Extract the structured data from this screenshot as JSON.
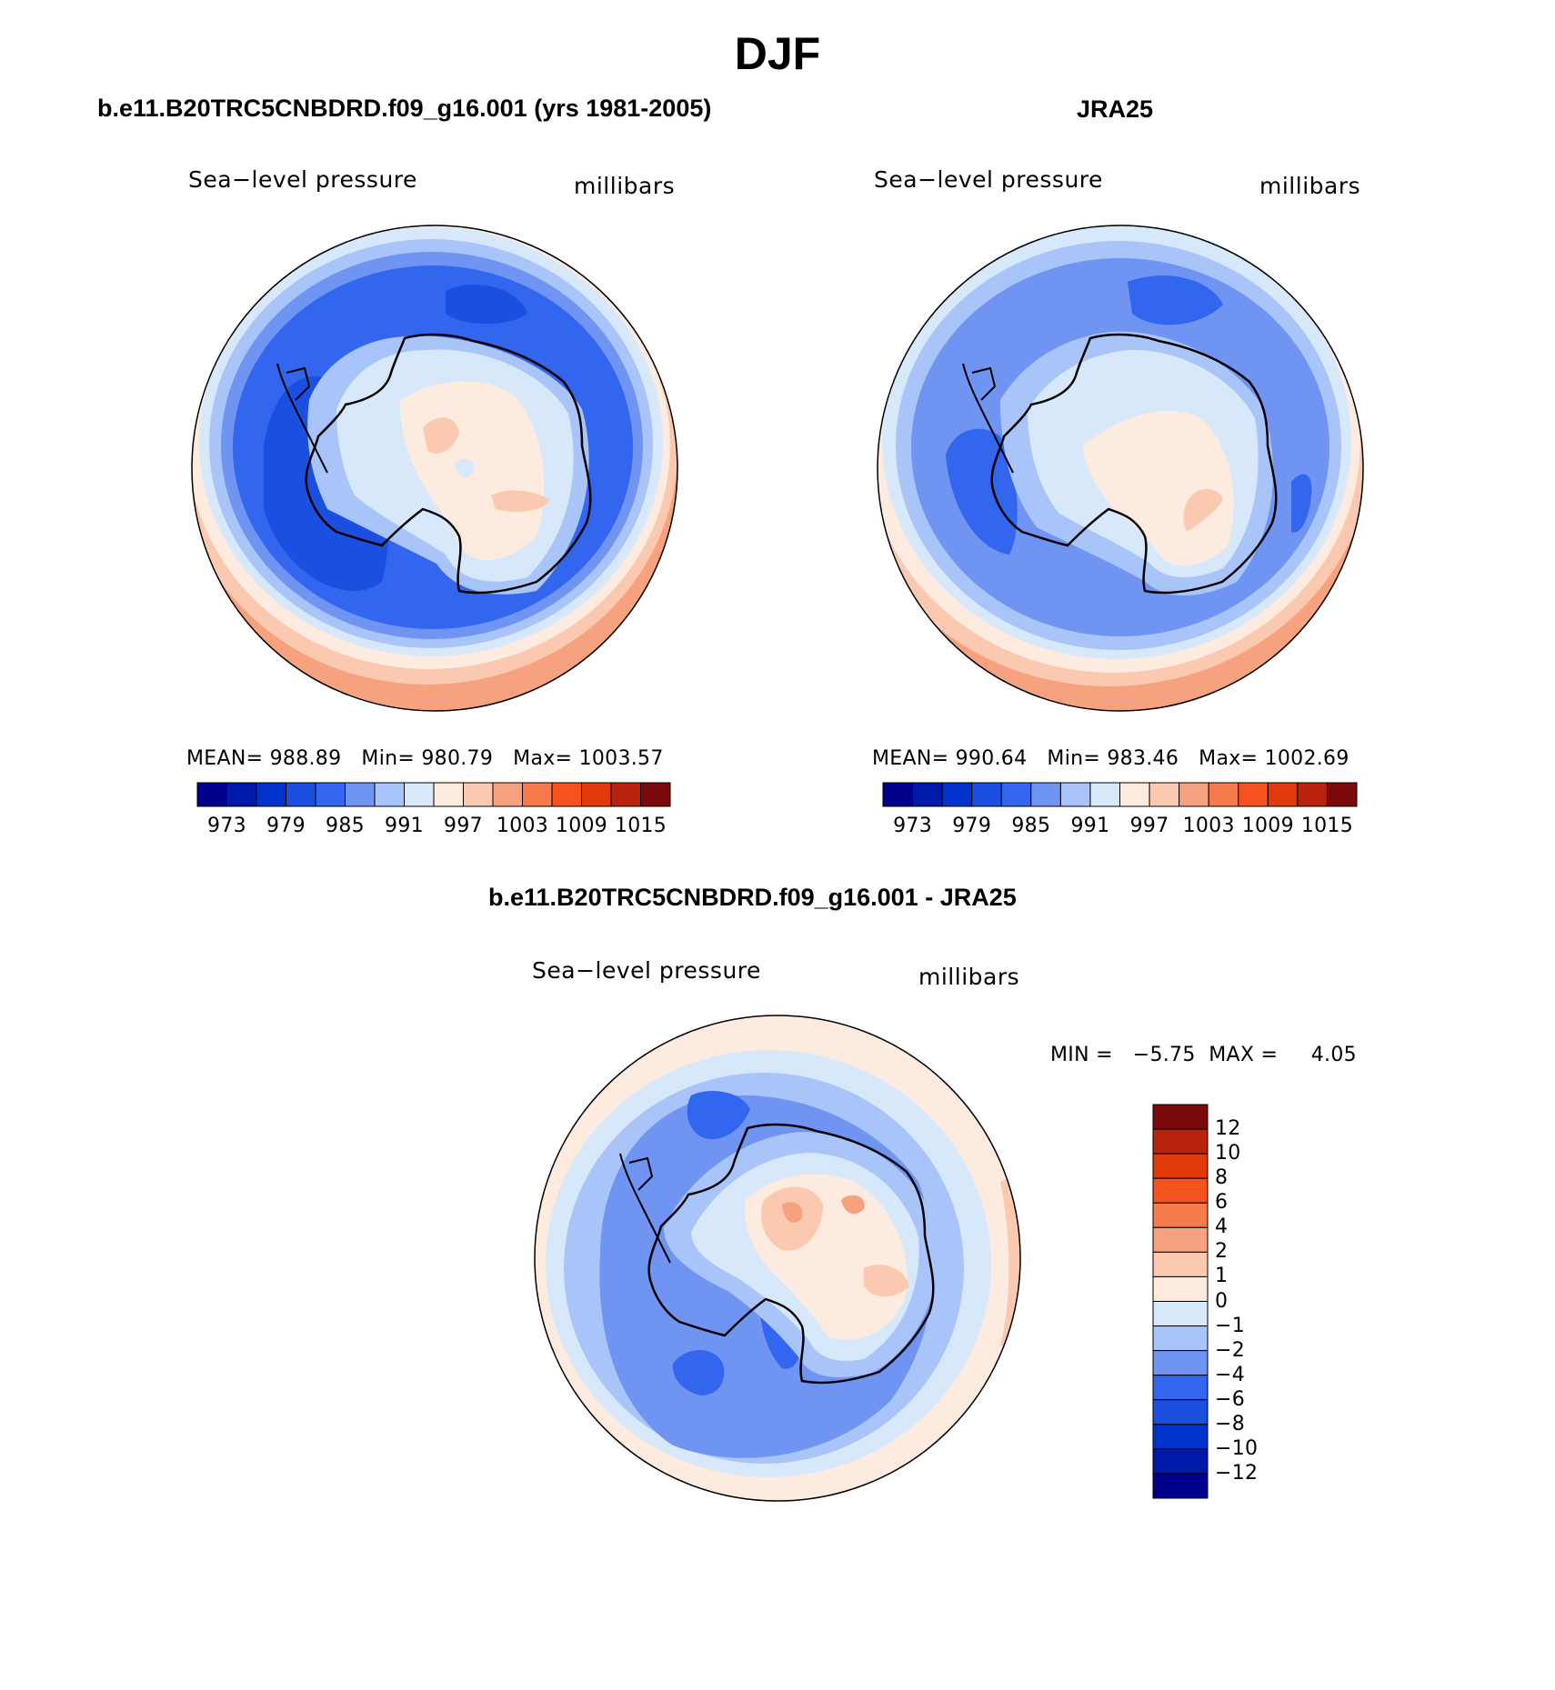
{
  "figure": {
    "season_title": "DJF"
  },
  "panels": [
    {
      "title": "b.e11.B20TRC5CNBDRD.f09_g16.001 (yrs 1981-2005)",
      "left_string": "Sea−level pressure",
      "right_string": "millibars",
      "stats": {
        "mean": "MEAN= 988.89",
        "min": "Min= 980.79",
        "max": "Max= 1003.57"
      }
    },
    {
      "title": "JRA25",
      "left_string": "Sea−level pressure",
      "right_string": "millibars",
      "stats": {
        "mean": "MEAN= 990.64",
        "min": "Min= 983.46",
        "max": "Max= 1002.69"
      }
    },
    {
      "title": "b.e11.B20TRC5CNBDRD.f09_g16.001 - JRA25",
      "left_string": "Sea−level pressure",
      "right_string": "millibars",
      "stats": {
        "minmax": "MIN =   −5.75  MAX =     4.05"
      }
    }
  ],
  "colorbars": {
    "absolute": {
      "labels": [
        "973",
        "979",
        "985",
        "991",
        "997",
        "1003",
        "1009",
        "1015"
      ],
      "colors": [
        "#00008b",
        "#0019a8",
        "#0033cc",
        "#1a4fe0",
        "#3366ee",
        "#6f94f2",
        "#a9c4f8",
        "#d8e8fb",
        "#fdebe0",
        "#fbc8b0",
        "#f6a27f",
        "#f77a4d",
        "#f4521f",
        "#e03a0a",
        "#b8230b",
        "#7d0a0a"
      ],
      "panel_1_colors": [
        "#00008b",
        "#0019a8",
        "#0033cc",
        "#1a4fe0",
        "#3366ee",
        "#6f94f2",
        "#a9c4f8",
        "#d8e8fb",
        "#fdebe0",
        "#fbc8b0",
        "#f6a27f",
        "#f77a4d",
        "#f4521f",
        "#e03a0a",
        "#b8230b",
        "#7d0a0a"
      ]
    },
    "difference": {
      "labels": [
        "12",
        "10",
        "8",
        "6",
        "4",
        "2",
        "1",
        "0",
        "−1",
        "−2",
        "−4",
        "−6",
        "−8",
        "−10",
        "−12"
      ],
      "colors_top_to_bottom": [
        "#7d0a0a",
        "#b8230b",
        "#e03a0a",
        "#f4521f",
        "#f77a4d",
        "#f6a27f",
        "#fbc8b0",
        "#fdebe0",
        "#d8e8fb",
        "#a9c4f8",
        "#6f94f2",
        "#3366ee",
        "#1a4fe0",
        "#0033cc",
        "#0019a8",
        "#00008b"
      ]
    }
  }
}
